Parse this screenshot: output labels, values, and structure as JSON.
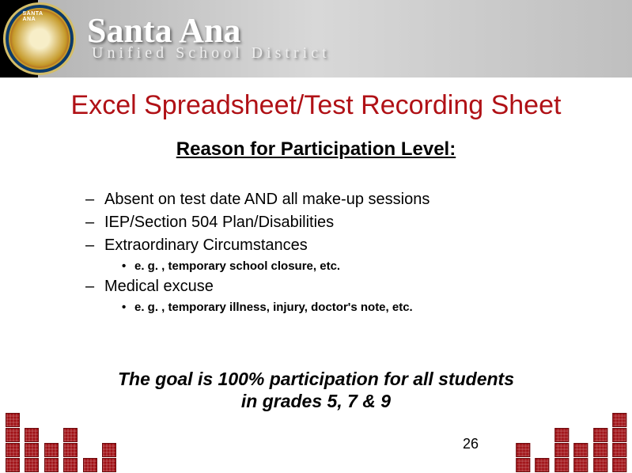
{
  "header": {
    "brand_main": "Santa Ana",
    "brand_sub": "Unified School District"
  },
  "title": "Excel Spreadsheet/Test Recording Sheet",
  "subtitle": "Reason for Participation Level:",
  "items": [
    {
      "text": "Absent on test date AND all make-up sessions"
    },
    {
      "text": "IEP/Section 504 Plan/Disabilities"
    },
    {
      "text": "Extraordinary Circumstances",
      "sub": "e. g. , temporary school closure, etc."
    },
    {
      "text": "Medical excuse",
      "sub": "e. g. , temporary illness, injury, doctor's note, etc."
    }
  ],
  "goal_line1": "The goal is 100% participation for all students",
  "goal_line2": "in grades 5, 7 & 9",
  "page_number": "26",
  "colors": {
    "title": "#b01116",
    "text": "#000000",
    "cube": "#a01015",
    "background": "#ffffff"
  }
}
